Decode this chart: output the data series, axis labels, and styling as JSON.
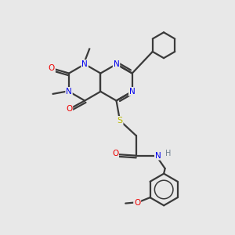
{
  "bg_color": "#e8e8e8",
  "bond_color": "#3a3a3a",
  "bond_width": 1.6,
  "atom_colors": {
    "N": "#0000ee",
    "O": "#ee0000",
    "S": "#bbbb00",
    "C": "#3a3a3a",
    "H": "#708090"
  },
  "figsize": [
    3.0,
    3.0
  ],
  "dpi": 100
}
